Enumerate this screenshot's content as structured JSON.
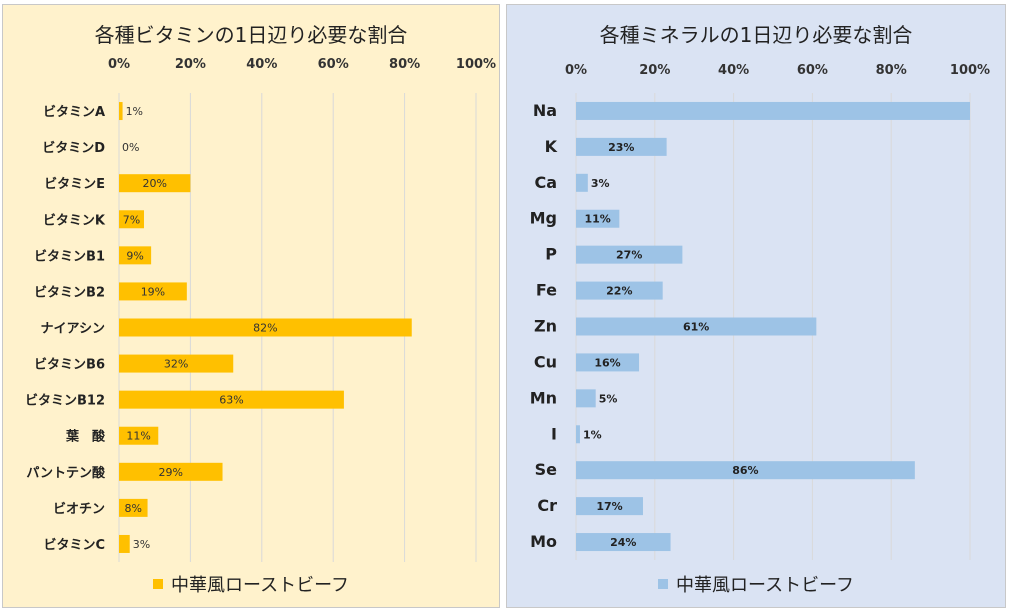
{
  "chart_data": [
    {
      "type": "bar",
      "orientation": "horizontal",
      "title": "各種ビタミンの1日辺り必要な割合",
      "categories": [
        "ビタミンA",
        "ビタミンD",
        "ビタミンE",
        "ビタミンK",
        "ビタミンB1",
        "ビタミンB2",
        "ナイアシン",
        "ビタミンB6",
        "ビタミンB12",
        "葉　酸",
        "パントテン酸",
        "ビオチン",
        "ビタミンC"
      ],
      "series": [
        {
          "name": "中華風ローストビーフ",
          "values": [
            1,
            0,
            20,
            7,
            9,
            19,
            82,
            32,
            63,
            11,
            29,
            8,
            3
          ]
        }
      ],
      "data_labels": [
        "1%",
        "0%",
        "20%",
        "7%",
        "9%",
        "19%",
        "82%",
        "32%",
        "63%",
        "11%",
        "29%",
        "8%",
        "3%"
      ],
      "xlim": [
        0,
        100
      ],
      "ticks": [
        "0%",
        "20%",
        "40%",
        "60%",
        "80%",
        "100%"
      ],
      "xlabel": "",
      "ylabel": "",
      "grid": true,
      "legend": "bottom",
      "colors": {
        "bar": "#ffc000",
        "background": "#fff2cc",
        "grid": "#d9d9d9"
      }
    },
    {
      "type": "bar",
      "orientation": "horizontal",
      "title": "各種ミネラルの1日辺り必要な割合",
      "categories": [
        "Na",
        "K",
        "Ca",
        "Mg",
        "P",
        "Fe",
        "Zn",
        "Cu",
        "Mn",
        "I",
        "Se",
        "Cr",
        "Mo"
      ],
      "series": [
        {
          "name": "中華風ローストビーフ",
          "values": [
            100,
            23,
            3,
            11,
            27,
            22,
            61,
            16,
            5,
            1,
            86,
            17,
            24
          ]
        }
      ],
      "data_labels": [
        "",
        "23%",
        "3%",
        "11%",
        "27%",
        "22%",
        "61%",
        "16%",
        "5%",
        "1%",
        "86%",
        "17%",
        "24%"
      ],
      "xlim": [
        0,
        100
      ],
      "ticks": [
        "0%",
        "20%",
        "40%",
        "60%",
        "80%",
        "100%"
      ],
      "xlabel": "",
      "ylabel": "",
      "grid": true,
      "legend": "bottom",
      "colors": {
        "bar": "#9dc3e6",
        "background": "#dae3f3",
        "grid": "#d9d9d9"
      }
    }
  ]
}
